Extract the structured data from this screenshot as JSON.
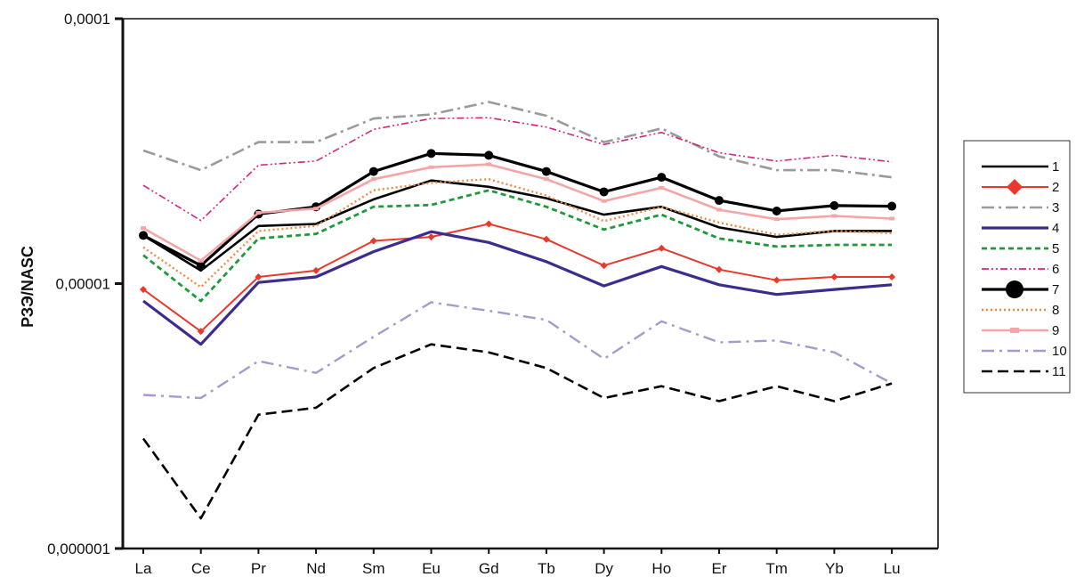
{
  "chart_data": {
    "type": "line",
    "ylabel": "РЗЭ/NASC",
    "xlabel": "",
    "yscale": "log",
    "ylim": [
      1e-06,
      0.0001
    ],
    "ytick_labels": [
      "0,000001",
      "0,00001",
      "0,0001"
    ],
    "categories": [
      "La",
      "Ce",
      "Pr",
      "Nd",
      "Sm",
      "Eu",
      "Gd",
      "Tb",
      "Dy",
      "Ho",
      "Er",
      "Tm",
      "Yb",
      "Lu"
    ],
    "legend_position": "right",
    "series": [
      {
        "name": "1",
        "color": "#000000",
        "width": 2.6,
        "dash": "",
        "marker": "none",
        "values": [
          1.52e-05,
          1.12e-05,
          1.65e-05,
          1.68e-05,
          2.08e-05,
          2.45e-05,
          2.32e-05,
          2.1e-05,
          1.82e-05,
          1.95e-05,
          1.63e-05,
          1.5e-05,
          1.58e-05,
          1.58e-05
        ]
      },
      {
        "name": "2",
        "color": "#e8392b",
        "width": 2,
        "dash": "",
        "marker": "diamond",
        "values": [
          9.5e-06,
          6.6e-06,
          1.06e-05,
          1.12e-05,
          1.45e-05,
          1.5e-05,
          1.68e-05,
          1.47e-05,
          1.17e-05,
          1.36e-05,
          1.13e-05,
          1.03e-05,
          1.06e-05,
          1.06e-05
        ]
      },
      {
        "name": "3",
        "color": "#9a9a9a",
        "width": 2.6,
        "dash": "14,5,3,5",
        "marker": "none",
        "values": [
          3.18e-05,
          2.68e-05,
          3.42e-05,
          3.42e-05,
          4.2e-05,
          4.35e-05,
          4.85e-05,
          4.3e-05,
          3.42e-05,
          3.85e-05,
          3.02e-05,
          2.68e-05,
          2.68e-05,
          2.52e-05
        ]
      },
      {
        "name": "4",
        "color": "#3b2d8f",
        "width": 3.2,
        "dash": "",
        "marker": "none",
        "values": [
          8.6e-06,
          5.9e-06,
          1.01e-05,
          1.06e-05,
          1.32e-05,
          1.57e-05,
          1.43e-05,
          1.21e-05,
          9.8e-06,
          1.16e-05,
          9.9e-06,
          9.1e-06,
          9.5e-06,
          9.9e-06
        ]
      },
      {
        "name": "5",
        "color": "#1e9a3a",
        "width": 2.8,
        "dash": "6,4",
        "marker": "none",
        "values": [
          1.28e-05,
          8.6e-06,
          1.48e-05,
          1.54e-05,
          1.95e-05,
          1.98e-05,
          2.25e-05,
          1.95e-05,
          1.6e-05,
          1.82e-05,
          1.48e-05,
          1.38e-05,
          1.4e-05,
          1.4e-05
        ]
      },
      {
        "name": "6",
        "color": "#d6247c",
        "width": 1.6,
        "dash": "8,3,2,3,2,3",
        "marker": "none",
        "values": [
          2.35e-05,
          1.73e-05,
          2.8e-05,
          2.9e-05,
          3.82e-05,
          4.2e-05,
          4.23e-05,
          3.9e-05,
          3.35e-05,
          3.72e-05,
          3.12e-05,
          2.9e-05,
          3.05e-05,
          2.88e-05
        ]
      },
      {
        "name": "7",
        "color": "#000000",
        "width": 3.2,
        "dash": "",
        "marker": "circle",
        "values": [
          1.52e-05,
          1.17e-05,
          1.83e-05,
          1.95e-05,
          2.65e-05,
          3.1e-05,
          3.05e-05,
          2.65e-05,
          2.22e-05,
          2.52e-05,
          2.06e-05,
          1.88e-05,
          1.97e-05,
          1.96e-05
        ]
      },
      {
        "name": "8",
        "color": "#f08a40",
        "width": 2.4,
        "dash": "2,3",
        "marker": "none",
        "values": [
          1.37e-05,
          9.7e-06,
          1.58e-05,
          1.65e-05,
          2.25e-05,
          2.4e-05,
          2.48e-05,
          2.15e-05,
          1.72e-05,
          1.95e-05,
          1.7e-05,
          1.53e-05,
          1.58e-05,
          1.55e-05
        ]
      },
      {
        "name": "9",
        "color": "#f4a6a6",
        "width": 2.6,
        "dash": "",
        "marker": "square",
        "values": [
          1.62e-05,
          1.22e-05,
          1.85e-05,
          1.92e-05,
          2.48e-05,
          2.75e-05,
          2.82e-05,
          2.48e-05,
          2.05e-05,
          2.3e-05,
          1.9e-05,
          1.75e-05,
          1.8e-05,
          1.76e-05
        ]
      },
      {
        "name": "10",
        "color": "#a79acb",
        "width": 2.4,
        "dash": "14,6,3,6",
        "marker": "none",
        "values": [
          3.8e-06,
          3.7e-06,
          5.1e-06,
          4.6e-06,
          6.3e-06,
          8.5e-06,
          7.9e-06,
          7.3e-06,
          5.2e-06,
          7.2e-06,
          6e-06,
          6.1e-06,
          5.5e-06,
          4.2e-06
        ]
      },
      {
        "name": "11",
        "color": "#000000",
        "width": 2.6,
        "dash": "12,6",
        "marker": "none",
        "values": [
          2.6e-06,
          1.3e-06,
          3.2e-06,
          3.4e-06,
          4.8e-06,
          5.9e-06,
          5.5e-06,
          4.8e-06,
          3.7e-06,
          4.1e-06,
          3.6e-06,
          4.1e-06,
          3.6e-06,
          4.2e-06
        ]
      }
    ]
  }
}
